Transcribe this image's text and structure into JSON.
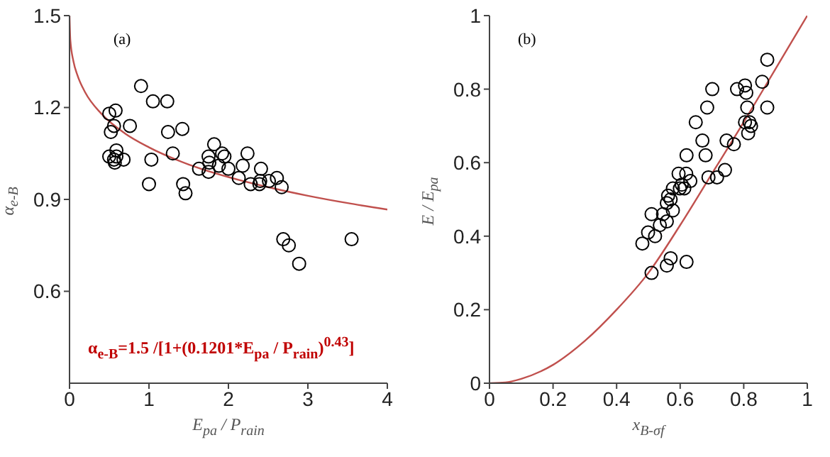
{
  "chart_data": [
    {
      "type": "scatter",
      "xlabel": "E$_{pa}$ / P$_{rain}$",
      "ylabel": "α$_{e-B}$",
      "annotations": [
        "(a)",
        "α$_{e-B}$=1.5 /[1+(0.1201*E$_{pa}$ / P$_{rain}$)$^{0.43}$]"
      ],
      "xlim": [
        0,
        4
      ],
      "ylim": [
        0.3,
        1.5
      ],
      "xticks": [
        0,
        1,
        2,
        3,
        4
      ],
      "yticks": [
        0.6,
        0.9,
        1.2,
        1.5
      ],
      "series": [
        {
          "marker": "circle",
          "color": "#000000",
          "x": [
            0.5,
            0.58,
            0.52,
            0.56,
            0.76,
            0.9,
            1.05,
            1.23,
            1.24,
            1.42,
            1.3,
            1.03,
            1.0,
            1.43,
            1.46,
            0.5,
            0.57,
            0.59,
            0.59,
            0.56,
            0.68,
            1.63,
            1.75,
            1.82,
            1.76,
            1.75,
            1.88,
            1.92,
            1.95,
            2.0,
            2.13,
            2.18,
            2.24,
            2.28,
            2.41,
            2.39,
            2.4,
            2.51,
            2.61,
            2.67,
            2.69,
            2.76,
            2.89,
            3.55
          ],
          "values": [
            1.18,
            1.19,
            1.12,
            1.14,
            1.14,
            1.27,
            1.22,
            1.22,
            1.12,
            1.13,
            1.05,
            1.03,
            0.95,
            0.95,
            0.92,
            1.04,
            1.02,
            1.06,
            1.04,
            1.03,
            1.03,
            1.0,
            1.04,
            1.08,
            1.02,
            0.99,
            1.01,
            1.05,
            1.04,
            1.0,
            0.97,
            1.01,
            1.05,
            0.95,
            1.0,
            0.95,
            0.96,
            0.96,
            0.97,
            0.94,
            0.77,
            0.75,
            0.69,
            0.77
          ]
        },
        {
          "type": "line",
          "color": "#c0504d",
          "x": [
            0,
            0.01,
            0.05,
            0.1,
            0.2,
            0.4,
            0.7,
            1,
            1.5,
            2,
            2.5,
            3,
            3.5,
            4
          ],
          "values": [
            1.5,
            1.421,
            1.35,
            1.305,
            1.248,
            1.18,
            1.115,
            1.07,
            1.014,
            0.973,
            0.94,
            0.912,
            0.888,
            0.867
          ]
        }
      ]
    },
    {
      "type": "scatter",
      "xlabel": "x$_{B-σf}$",
      "ylabel": "E / E$_{pa}$",
      "annotations": [
        "(b)"
      ],
      "xlim": [
        0,
        1
      ],
      "ylim": [
        0,
        1
      ],
      "xticks": [
        0,
        0.2,
        0.4,
        0.6,
        0.8,
        1
      ],
      "yticks": [
        0,
        0.2,
        0.4,
        0.6,
        0.8,
        1
      ],
      "series": [
        {
          "marker": "circle",
          "color": "#000000",
          "x": [
            0.874,
            0.858,
            0.874,
            0.804,
            0.808,
            0.779,
            0.811,
            0.804,
            0.818,
            0.823,
            0.814,
            0.701,
            0.685,
            0.649,
            0.67,
            0.746,
            0.769,
            0.68,
            0.62,
            0.689,
            0.716,
            0.741,
            0.595,
            0.619,
            0.632,
            0.605,
            0.613,
            0.599,
            0.577,
            0.562,
            0.57,
            0.558,
            0.577,
            0.546,
            0.558,
            0.51,
            0.536,
            0.521,
            0.499,
            0.481,
            0.57,
            0.558,
            0.62,
            0.51
          ],
          "values": [
            0.88,
            0.82,
            0.75,
            0.81,
            0.79,
            0.8,
            0.75,
            0.71,
            0.71,
            0.7,
            0.68,
            0.8,
            0.75,
            0.71,
            0.66,
            0.66,
            0.65,
            0.62,
            0.62,
            0.56,
            0.56,
            0.58,
            0.57,
            0.57,
            0.55,
            0.54,
            0.53,
            0.53,
            0.53,
            0.51,
            0.5,
            0.49,
            0.47,
            0.46,
            0.44,
            0.46,
            0.43,
            0.4,
            0.41,
            0.38,
            0.34,
            0.32,
            0.33,
            0.3
          ]
        },
        {
          "type": "line",
          "color": "#c0504d",
          "x": [
            0,
            0.05,
            0.1,
            0.2,
            0.3,
            0.4,
            0.5,
            0.6,
            0.7,
            0.8,
            0.9,
            1
          ],
          "values": [
            0,
            0.002,
            0.012,
            0.05,
            0.115,
            0.2,
            0.3,
            0.43,
            0.57,
            0.71,
            0.855,
            1
          ]
        }
      ]
    }
  ]
}
